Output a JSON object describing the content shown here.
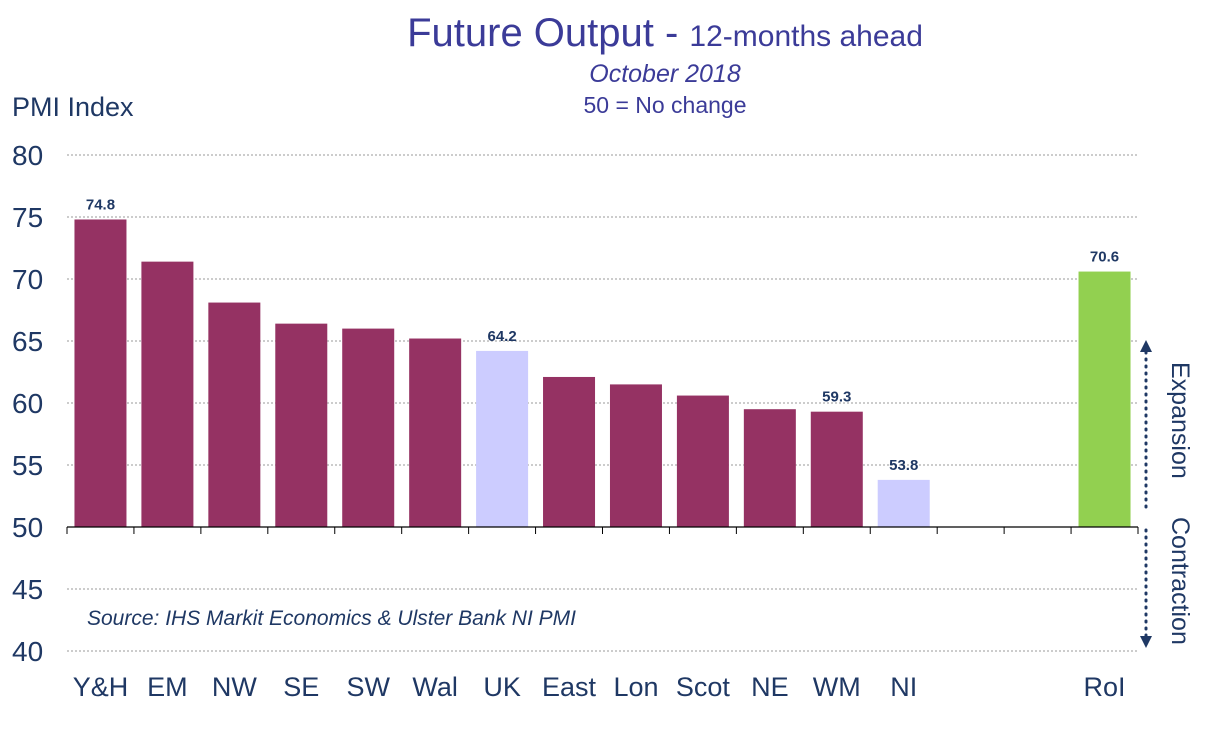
{
  "header": {
    "title_main": "Future Output - ",
    "title_sub": "12-months ahead",
    "date": "October 2018",
    "note": "50 = No change"
  },
  "source": "Source: IHS Markit Economics & Ulster Bank NI PMI",
  "side_labels": {
    "expansion": "Expansion",
    "contraction": "Contraction"
  },
  "colors": {
    "region": "#953263",
    "uk_ni": "#ccccff",
    "roi": "#92d050",
    "title": "#3b3b98",
    "axis_text": "#1f3864"
  },
  "chart_data": {
    "type": "bar",
    "ylabel": "PMI Index",
    "ylim": [
      40,
      80
    ],
    "yticks": [
      40,
      45,
      50,
      55,
      60,
      65,
      70,
      75,
      80
    ],
    "baseline": 50,
    "grid": true,
    "categories": [
      "Y&H",
      "EM",
      "NW",
      "SE",
      "SW",
      "Wal",
      "UK",
      "East",
      "Lon",
      "Scot",
      "NE",
      "WM",
      "NI",
      "",
      "",
      "RoI"
    ],
    "values": [
      74.8,
      71.4,
      68.1,
      66.4,
      66.0,
      65.2,
      64.2,
      62.1,
      61.5,
      60.6,
      59.5,
      59.3,
      53.8,
      null,
      null,
      70.6
    ],
    "bar_colors": [
      "region",
      "region",
      "region",
      "region",
      "region",
      "region",
      "uk_ni",
      "region",
      "region",
      "region",
      "region",
      "region",
      "uk_ni",
      null,
      null,
      "roi"
    ],
    "data_labels": [
      "74.8",
      "",
      "",
      "",
      "",
      "",
      "64.2",
      "",
      "",
      "",
      "",
      "59.3",
      "53.8",
      "",
      "",
      "70.6"
    ]
  }
}
